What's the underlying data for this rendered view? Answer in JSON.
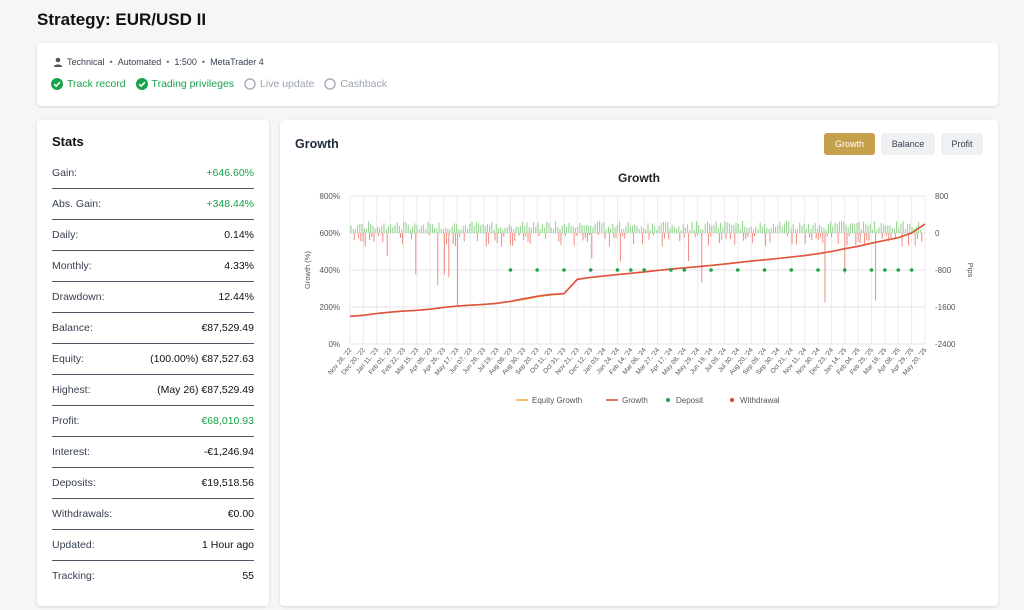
{
  "page": {
    "title": "Strategy: EUR/USD II"
  },
  "info": {
    "meta": [
      "Technical",
      "Automated",
      "1:500",
      "MetaTrader 4"
    ],
    "meta_separator": "•",
    "statuses": [
      {
        "label": "Track record",
        "active": true
      },
      {
        "label": "Trading privileges",
        "active": true
      },
      {
        "label": "Live update",
        "active": false
      },
      {
        "label": "Cashback",
        "active": false
      }
    ]
  },
  "stats": {
    "title": "Stats",
    "rows": [
      {
        "label": "Gain:",
        "value": "+646.60%",
        "green": true
      },
      {
        "label": "Abs. Gain:",
        "value": "+348.44%",
        "green": true
      },
      {
        "label": "Daily:",
        "value": "0.14%"
      },
      {
        "label": "Monthly:",
        "value": "4.33%"
      },
      {
        "label": "Drawdown:",
        "value": "12.44%"
      },
      {
        "label": "Balance:",
        "value": "€87,529.49"
      },
      {
        "label": "Equity:",
        "value": "(100.00%) €87,527.63"
      },
      {
        "label": "Highest:",
        "value": "(May 26) €87,529.49"
      },
      {
        "label": "Profit:",
        "value": "€68,010.93",
        "green": true
      },
      {
        "label": "Interest:",
        "value": "-€1,246.94"
      },
      {
        "label": "Deposits:",
        "value": "€19,518.56"
      },
      {
        "label": "Withdrawals:",
        "value": "€0.00"
      },
      {
        "label": "Updated:",
        "value": "1 Hour ago"
      },
      {
        "label": "Tracking:",
        "value": "55"
      }
    ]
  },
  "growth": {
    "title": "Growth",
    "tabs": [
      {
        "label": "Growth",
        "active": true
      },
      {
        "label": "Balance",
        "active": false
      },
      {
        "label": "Profit",
        "active": false
      }
    ]
  },
  "colors": {
    "accent": "#c6a14b",
    "green": "#16a34a",
    "growth_line": "#e0533f",
    "equity_line": "#f2b24a",
    "deposit": "#1aa34a",
    "withdrawal": "#e53935",
    "pips_positive": "#8fd18a",
    "pips_negative": "#f08a80"
  },
  "chart_data": {
    "type": "line",
    "title": "Growth",
    "ylabel": "Growth (%)",
    "y2label": "Pips",
    "ylim": [
      0,
      800
    ],
    "y_ticks": [
      "0%",
      "200%",
      "400%",
      "600%",
      "800%"
    ],
    "y2lim": [
      -2400,
      800
    ],
    "y2_ticks": [
      "-2400",
      "-1600",
      "-800",
      "0",
      "800"
    ],
    "x": [
      "Nov 28, '22",
      "Dec 20, '22",
      "Jan 11, '23",
      "Feb 01, '23",
      "Feb 22, '23",
      "Mar 15, '23",
      "Apr 05, '23",
      "Apr 26, '23",
      "May 17, '23",
      "Jun 07, '23",
      "Jun 28, '23",
      "Jul 19, '23",
      "Aug 08, '23",
      "Aug 30, '23",
      "Sep 20, '23",
      "Oct 11, '23",
      "Oct 31, '23",
      "Nov 21, '23",
      "Dec 12, '23",
      "Jan 03, '24",
      "Jan 24, '24",
      "Feb 14, '24",
      "Mar 06, '24",
      "Mar 27, '24",
      "Apr 17, '24",
      "May 08, '24",
      "May 29, '24",
      "Jun 19, '24",
      "Jul 09, '24",
      "Jul 30, '24",
      "Aug 20, '24",
      "Sep 09, '24",
      "Sep 30, '24",
      "Oct 21, '24",
      "Nov 11, '24",
      "Nov 30, '24",
      "Dec 23, '24",
      "Jan 14, '25",
      "Feb 04, '25",
      "Feb 25, '25",
      "Mar 18, '25",
      "Apr 08, '25",
      "Apr 29, '25",
      "May 20, '25"
    ],
    "legend": [
      "Equity Growth",
      "Growth",
      "Deposit",
      "Withdrawal"
    ],
    "legend_position": "bottom",
    "series": [
      {
        "name": "Growth",
        "values": [
          150,
          155,
          165,
          172,
          178,
          182,
          188,
          198,
          205,
          210,
          214,
          220,
          230,
          245,
          258,
          268,
          272,
          350,
          360,
          368,
          375,
          382,
          390,
          398,
          405,
          412,
          418,
          425,
          432,
          440,
          448,
          455,
          462,
          470,
          478,
          488,
          500,
          515,
          528,
          545,
          560,
          575,
          600,
          648
        ]
      },
      {
        "name": "Equity Growth",
        "values": [
          150,
          155,
          165,
          172,
          178,
          182,
          188,
          198,
          205,
          210,
          214,
          220,
          230,
          240,
          255,
          265,
          272,
          350,
          360,
          368,
          375,
          382,
          390,
          398,
          405,
          412,
          418,
          425,
          432,
          440,
          448,
          455,
          462,
          470,
          478,
          488,
          500,
          515,
          528,
          545,
          560,
          575,
          600,
          648
        ]
      }
    ],
    "deposits": [
      {
        "date": "Aug 08, '23",
        "growth": 400
      },
      {
        "date": "Sep 20, '23",
        "growth": 400
      },
      {
        "date": "Oct 31, '23",
        "growth": 400
      },
      {
        "date": "Dec 12, '23",
        "growth": 400
      },
      {
        "date": "Jan 24, '24",
        "growth": 400
      },
      {
        "date": "Feb 14, '24",
        "growth": 400
      },
      {
        "date": "Mar 06, '24",
        "growth": 400
      },
      {
        "date": "Apr 17, '24",
        "growth": 400
      },
      {
        "date": "May 08, '24",
        "growth": 400
      },
      {
        "date": "Jun 19, '24",
        "growth": 400
      },
      {
        "date": "Jul 30, '24",
        "growth": 400
      },
      {
        "date": "Sep 09, '24",
        "growth": 400
      },
      {
        "date": "Oct 21, '24",
        "growth": 400
      },
      {
        "date": "Nov 30, '24",
        "growth": 400
      },
      {
        "date": "Jan 14, '25",
        "growth": 400
      },
      {
        "date": "Feb 25, '25",
        "growth": 400
      },
      {
        "date": "Mar 18, '25",
        "growth": 400
      },
      {
        "date": "Apr 08, '25",
        "growth": 400
      },
      {
        "date": "Apr 29, '25",
        "growth": 400
      }
    ],
    "grid": true
  }
}
